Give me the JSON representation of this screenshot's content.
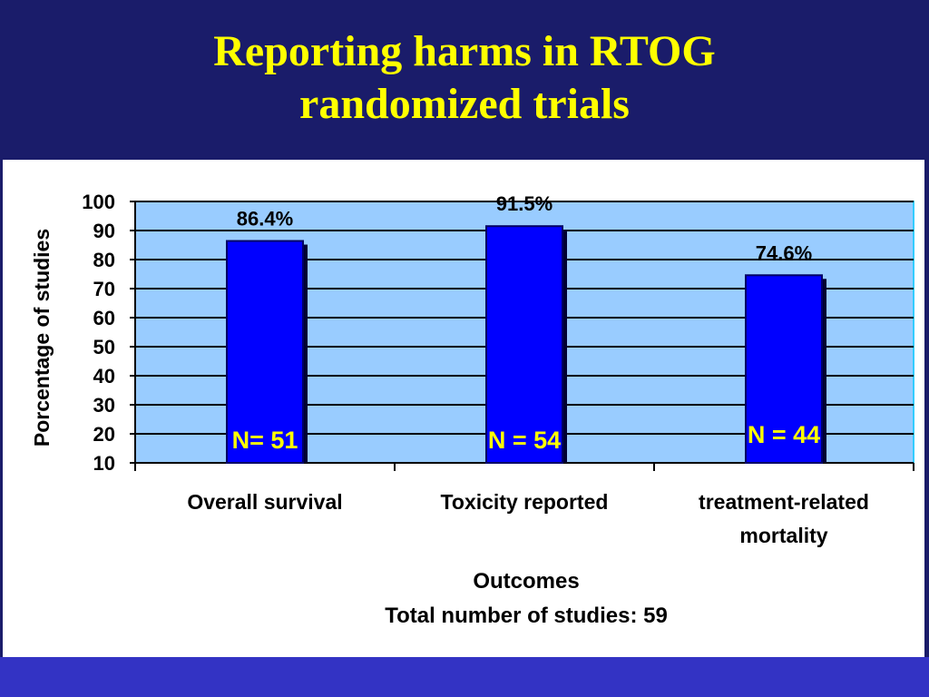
{
  "slide": {
    "title_line1": "Reporting harms in RTOG",
    "title_line2": "randomized trials"
  },
  "colors": {
    "background": "#1a1c6a",
    "title": "#ffff00",
    "plot_area": "#99ccff",
    "bar": "#0000ff",
    "bar_shadow": "#000033",
    "n_label": "#ffff00"
  },
  "chart_data": {
    "type": "bar",
    "categories": [
      "Overall survival",
      "Toxicity reported",
      "treatment-related mortality"
    ],
    "category_lines": [
      [
        "Overall survival"
      ],
      [
        "Toxicity reported"
      ],
      [
        "treatment-related",
        "mortality"
      ]
    ],
    "values": [
      86.4,
      91.5,
      74.6
    ],
    "value_labels": [
      "86.4%",
      "91.5%",
      "74.6%"
    ],
    "n_labels": [
      "N= 51",
      "N = 54",
      "N = 44"
    ],
    "ylabel": "Porcentage of studies",
    "xlabel": "Outcomes",
    "subtitle": "Total number of studies: 59",
    "ylim": [
      10,
      100
    ],
    "yticks": [
      10,
      20,
      30,
      40,
      50,
      60,
      70,
      80,
      90,
      100
    ],
    "grid": true
  }
}
